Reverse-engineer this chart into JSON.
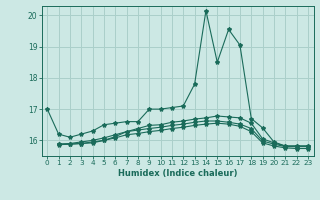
{
  "xlabel": "Humidex (Indice chaleur)",
  "xlim": [
    -0.5,
    23.5
  ],
  "ylim": [
    15.5,
    20.3
  ],
  "yticks": [
    16,
    17,
    18,
    19,
    20
  ],
  "xticks": [
    0,
    1,
    2,
    3,
    4,
    5,
    6,
    7,
    8,
    9,
    10,
    11,
    12,
    13,
    14,
    15,
    16,
    17,
    18,
    19,
    20,
    21,
    22,
    23
  ],
  "bg_color": "#cce8e4",
  "grid_color": "#aacfca",
  "line_color": "#1a6b5a",
  "series": [
    [
      17.0,
      16.2,
      16.1,
      16.2,
      16.3,
      16.5,
      16.55,
      16.6,
      16.6,
      17.0,
      17.0,
      17.05,
      17.1,
      17.8,
      20.15,
      18.5,
      19.55,
      19.05,
      16.7,
      16.4,
      15.95,
      15.82,
      15.82,
      15.82
    ],
    [
      null,
      15.88,
      15.88,
      15.9,
      15.92,
      16.0,
      16.12,
      16.28,
      16.38,
      16.48,
      16.5,
      16.58,
      16.62,
      16.68,
      16.72,
      16.78,
      16.75,
      16.72,
      16.55,
      16.05,
      15.92,
      15.82,
      15.82,
      15.82
    ],
    [
      null,
      15.88,
      15.9,
      15.95,
      16.0,
      16.08,
      16.18,
      16.28,
      16.33,
      16.38,
      16.42,
      16.48,
      16.52,
      16.58,
      16.62,
      16.62,
      16.58,
      16.52,
      16.38,
      15.98,
      15.88,
      15.8,
      15.8,
      15.8
    ],
    [
      null,
      15.86,
      15.88,
      15.9,
      15.95,
      16.0,
      16.08,
      16.18,
      16.22,
      16.28,
      16.32,
      16.38,
      16.42,
      16.48,
      16.52,
      16.55,
      16.52,
      16.45,
      16.28,
      15.92,
      15.82,
      15.76,
      15.74,
      15.74
    ]
  ]
}
